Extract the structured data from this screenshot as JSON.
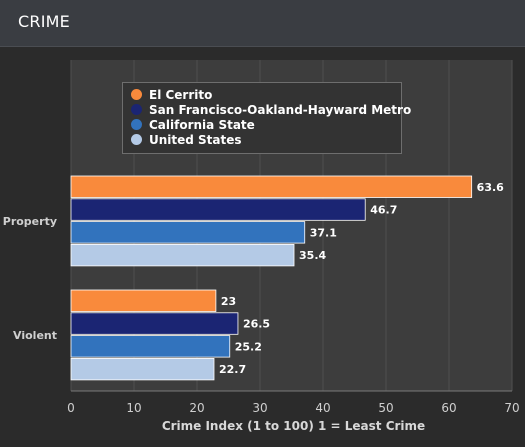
{
  "header": {
    "title": "CRIME"
  },
  "chart_data": {
    "type": "bar",
    "orientation": "horizontal",
    "categories": [
      "Property",
      "Violent"
    ],
    "series": [
      {
        "name": "El Cerrito",
        "color": "#f98a3c",
        "values": [
          63.6,
          23
        ]
      },
      {
        "name": "San Francisco-Oakland-Hayward Metro",
        "color": "#1b2573",
        "values": [
          46.7,
          26.5
        ]
      },
      {
        "name": "California State",
        "color": "#3273bd",
        "values": [
          37.1,
          25.2
        ]
      },
      {
        "name": "United States",
        "color": "#b4cae6",
        "values": [
          35.4,
          22.7
        ]
      }
    ],
    "xlabel": "Crime Index (1 to 100) 1 = Least Crime",
    "ylabel": "",
    "xlim": [
      0,
      70
    ],
    "xticks": [
      0,
      10,
      20,
      30,
      40,
      50,
      60,
      70
    ],
    "grid": true,
    "legend": "top-center",
    "data_labels": true
  }
}
